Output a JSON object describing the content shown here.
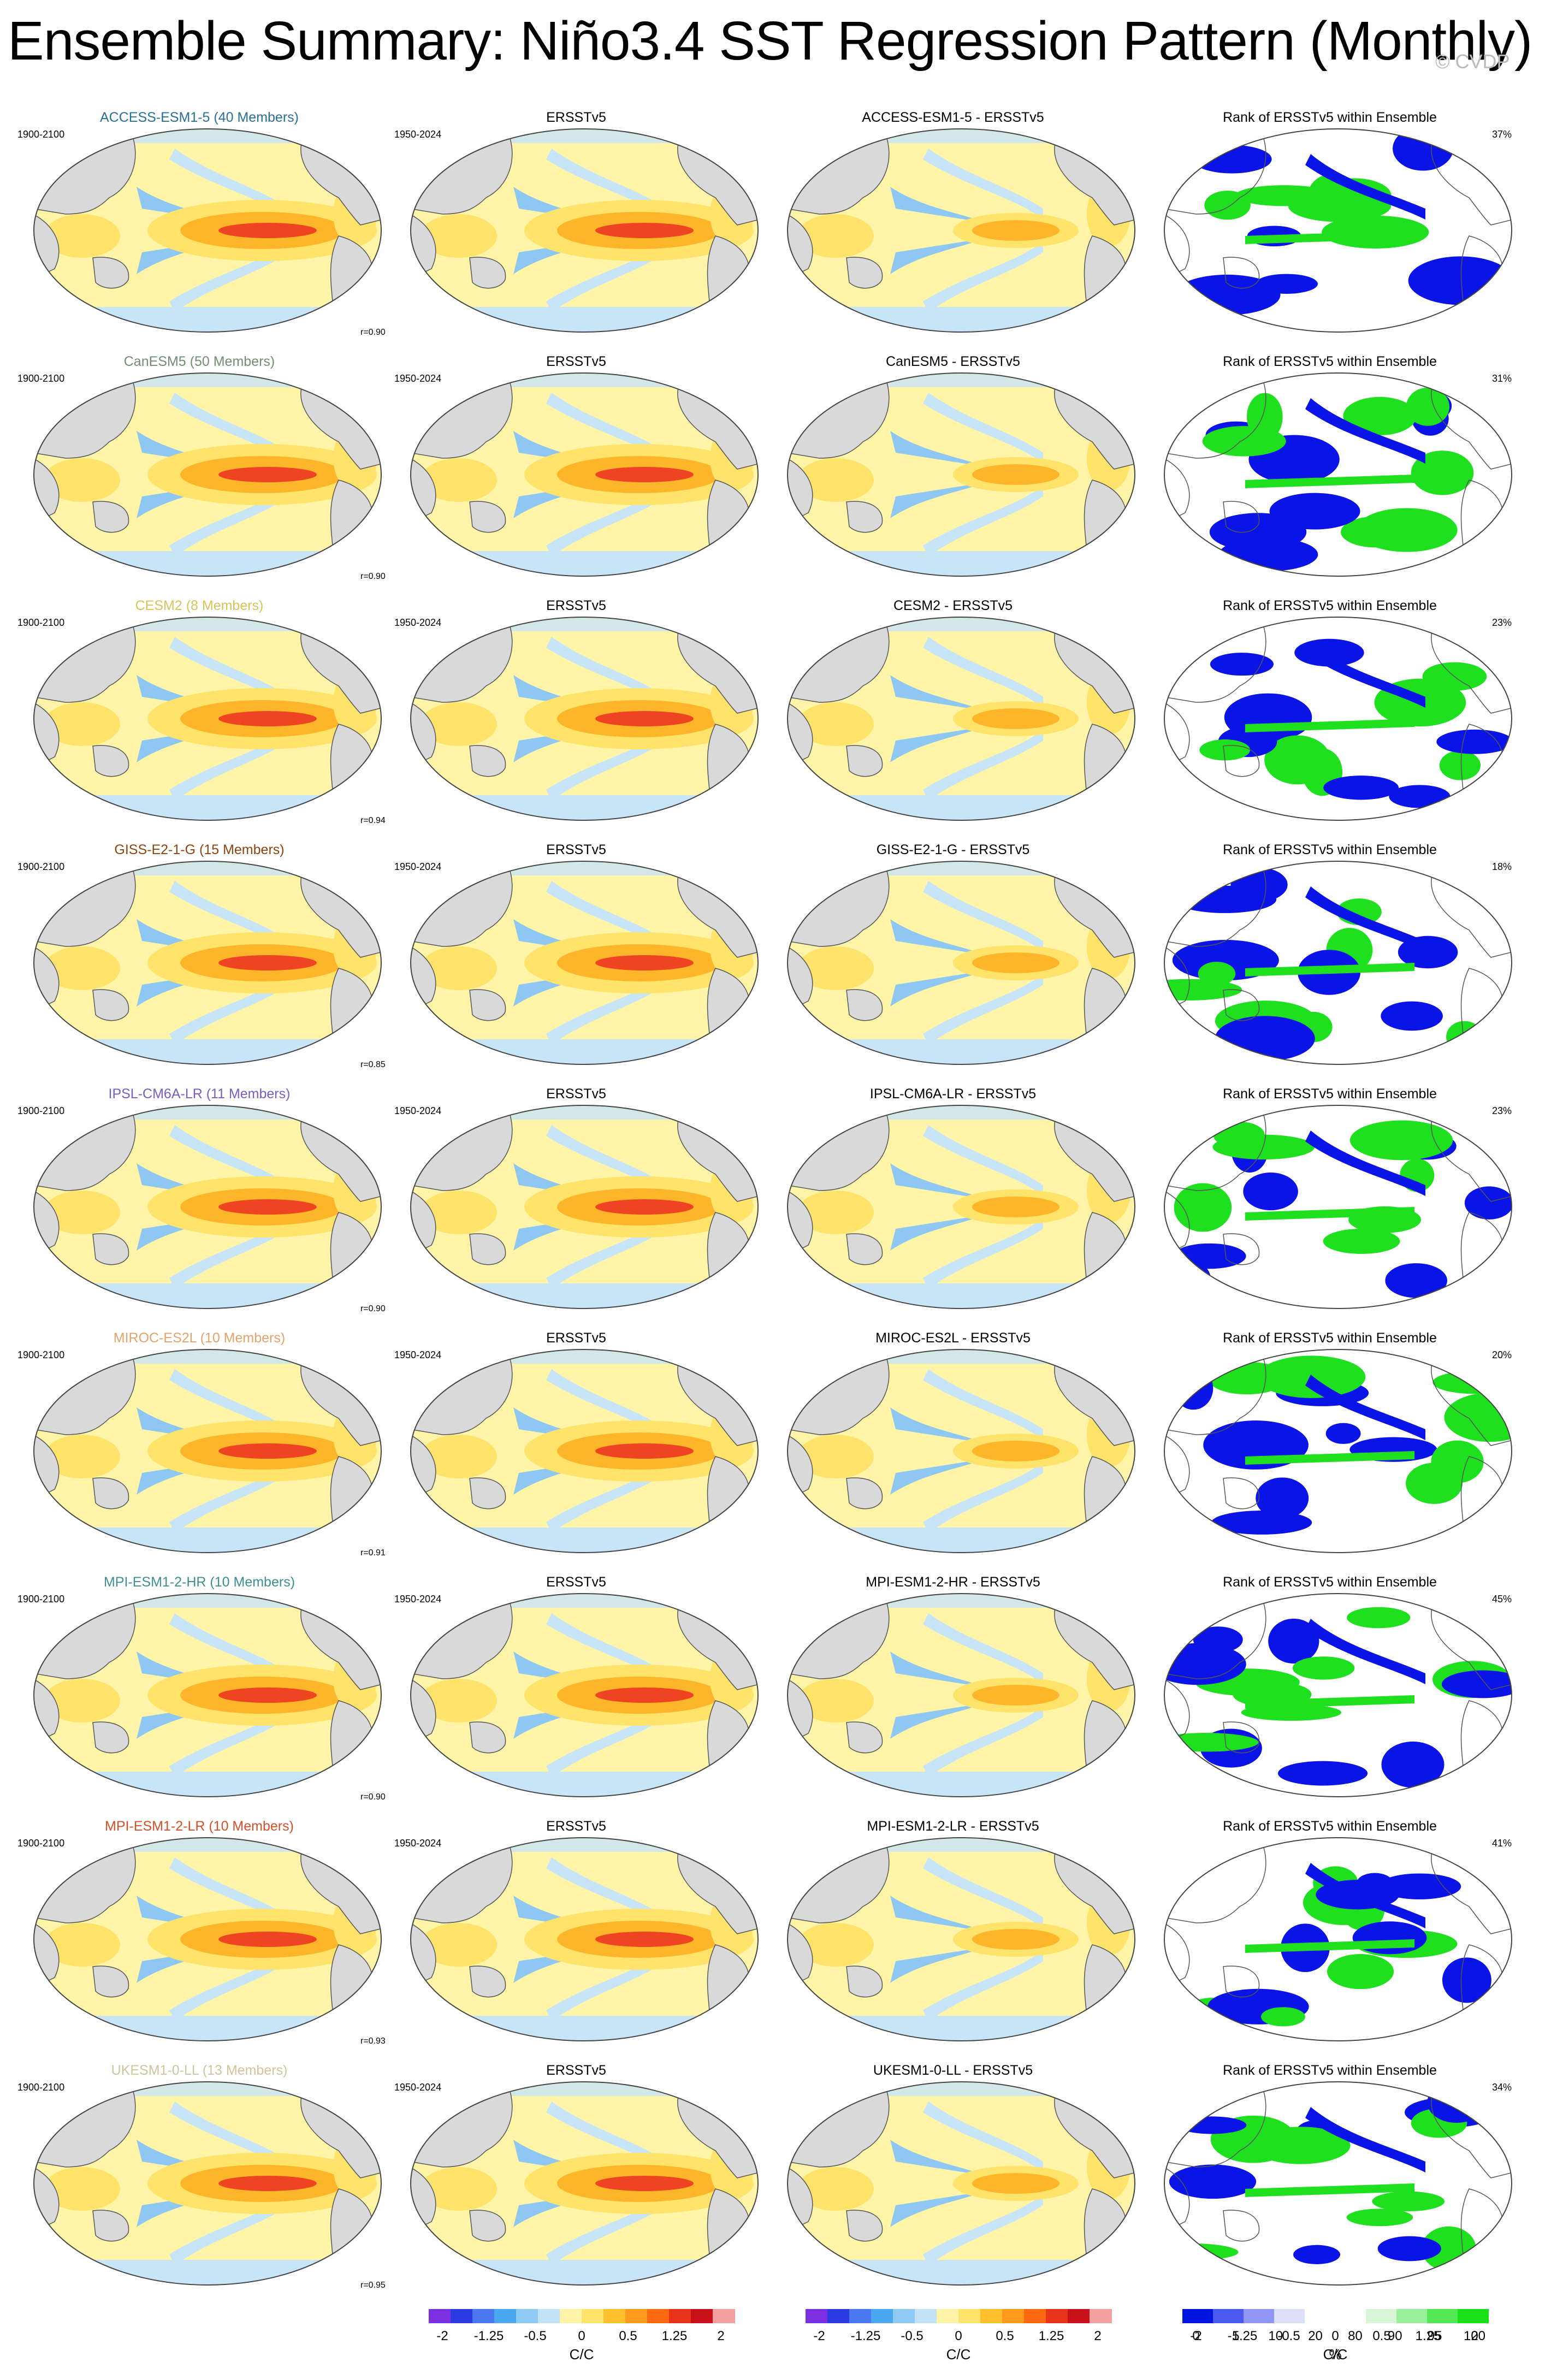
{
  "title": "Ensemble Summary: Niño3.4 SST Regression Pattern (Monthly)",
  "watermark": "© CVDP",
  "column_titles": {
    "obs": "ERSSTv5",
    "rank": "Rank of ERSSTv5 within Ensemble",
    "diff_suffix": " - ERSSTv5"
  },
  "period_model": "1900-2100",
  "period_obs": "1950-2024",
  "rows": [
    {
      "model": "ACCESS-ESM1-5",
      "label": "ACCESS-ESM1-5 (40 Members)",
      "color": "#2a6f97",
      "r": "r=0.90",
      "pct": "37%"
    },
    {
      "model": "CanESM5",
      "label": "CanESM5 (50 Members)",
      "color": "#6f8f6f",
      "r": "r=0.90",
      "pct": "31%"
    },
    {
      "model": "CESM2",
      "label": "CESM2 (8 Members)",
      "color": "#d9c25a",
      "r": "r=0.94",
      "pct": "23%"
    },
    {
      "model": "GISS-E2-1-G",
      "label": "GISS-E2-1-G (15 Members)",
      "color": "#8b4513",
      "r": "r=0.85",
      "pct": "18%"
    },
    {
      "model": "IPSL-CM6A-LR",
      "label": "IPSL-CM6A-LR (11 Members)",
      "color": "#7b5cc4",
      "r": "r=0.90",
      "pct": "23%"
    },
    {
      "model": "MIROC-ES2L",
      "label": "MIROC-ES2L (10 Members)",
      "color": "#e3a46b",
      "r": "r=0.91",
      "pct": "20%"
    },
    {
      "model": "MPI-ESM1-2-HR",
      "label": "MPI-ESM1-2-HR (10 Members)",
      "color": "#3f8f8f",
      "r": "r=0.90",
      "pct": "45%"
    },
    {
      "model": "MPI-ESM1-2-LR",
      "label": "MPI-ESM1-2-LR (10 Members)",
      "color": "#d2502a",
      "r": "r=0.93",
      "pct": "41%"
    },
    {
      "model": "UKESM1-0-LL",
      "label": "UKESM1-0-LL (13 Members)",
      "color": "#cfc59a",
      "r": "r=0.95",
      "pct": "34%"
    }
  ],
  "colorbar_sst": {
    "colors": [
      "#7b2fe0",
      "#2b3be0",
      "#4a78f0",
      "#4aa8f0",
      "#8fcaf5",
      "#c2e2f7",
      "#fff3a8",
      "#ffe36b",
      "#ffc02e",
      "#ff9a1f",
      "#ff6a10",
      "#e8321a",
      "#c8101a",
      "#f5a0a0"
    ],
    "labels": [
      "-2",
      "-1.25",
      "-0.5",
      "0",
      "0.5",
      "1.25",
      "2"
    ],
    "unit": "C/C"
  },
  "colorbar_rank": {
    "colors": [
      "#0014e0",
      "#4a5af0",
      "#8f96f5",
      "#dcdff8",
      "#ffffff",
      "#ffffff",
      "#d8f5d8",
      "#9af09a",
      "#55e855",
      "#19e019"
    ],
    "labels": [
      "0",
      "5",
      "10",
      "20",
      "80",
      "90",
      "95",
      "100"
    ],
    "unit": "%"
  },
  "map_colors": {
    "land": "#d9d9d9",
    "ocean_base": "#fff4a8",
    "blue_light": "#c8e4f7",
    "blue_mid": "#8ec8f2",
    "yellow": "#ffe36b",
    "orange": "#ffb52a",
    "red": "#ef4422",
    "rank_blue": "#0a14e6",
    "rank_green": "#1fe01f"
  }
}
